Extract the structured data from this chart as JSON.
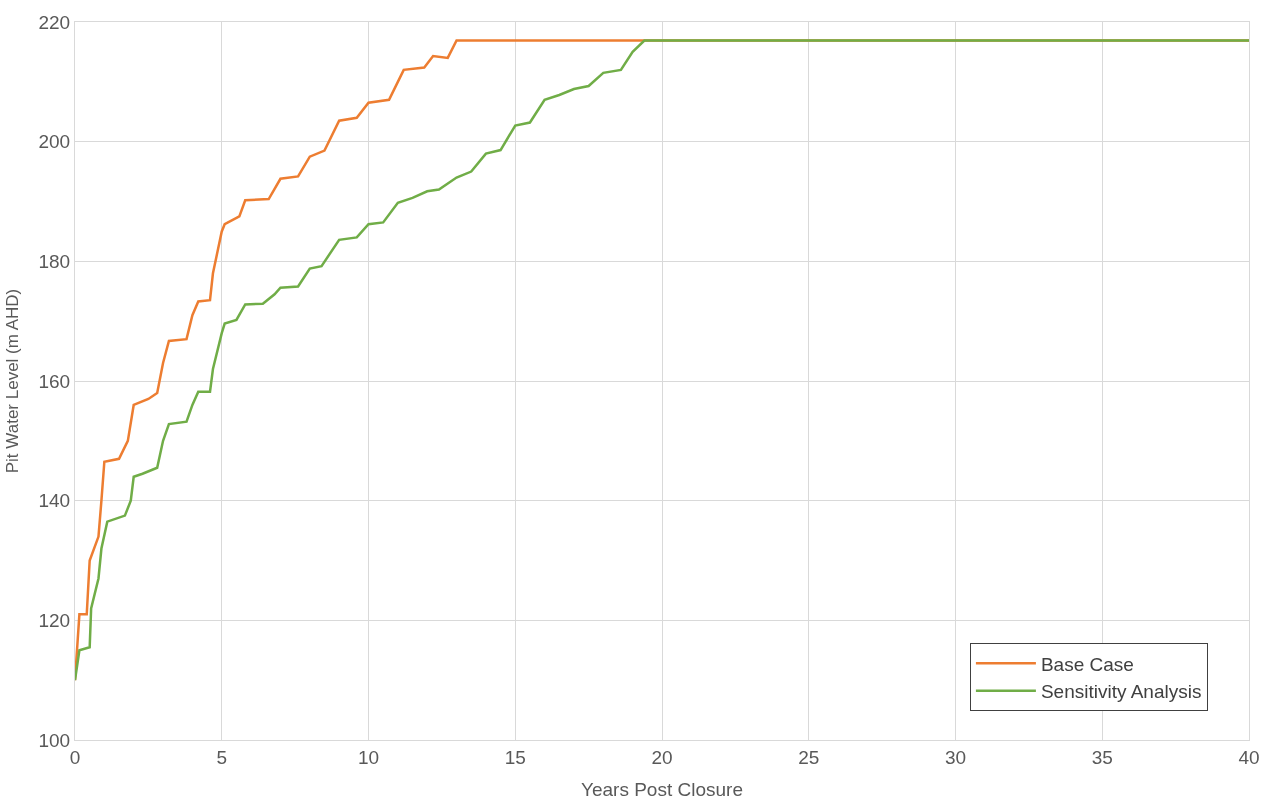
{
  "chart_data": {
    "type": "line",
    "xlabel": "Years Post Closure",
    "ylabel": "Pit Water Level (m AHD)",
    "xlim": [
      0,
      40
    ],
    "xticks": [
      0,
      5,
      10,
      15,
      20,
      25,
      30,
      35,
      40
    ],
    "ylim": [
      100,
      220
    ],
    "yticks": [
      100,
      120,
      140,
      160,
      180,
      200,
      220
    ],
    "grid": true,
    "legend": "bottom right",
    "marker": "none",
    "line_style": "solid",
    "series": [
      {
        "name": "Base Case",
        "color": "#ed7d31",
        "x": [
          0,
          0.15,
          0.4,
          0.5,
          0.8,
          0.9,
          1.0,
          1.5,
          1.8,
          2.0,
          2.5,
          2.8,
          3.0,
          3.2,
          3.8,
          4.0,
          4.2,
          4.6,
          4.7,
          5.0,
          5.1,
          5.6,
          5.8,
          6.6,
          7.0,
          7.6,
          8.0,
          8.5,
          9.0,
          9.6,
          10.0,
          10.7,
          11.0,
          11.2,
          11.9,
          12.2,
          12.7,
          13.0,
          20,
          30,
          40
        ],
        "values": [
          110,
          121,
          121,
          130,
          134,
          140,
          146.5,
          147,
          150,
          156,
          157,
          158,
          163,
          166.7,
          167,
          171,
          173.3,
          173.5,
          178,
          185,
          186.2,
          187.5,
          190.2,
          190.4,
          193.8,
          194.2,
          197.5,
          198.5,
          203.5,
          204,
          206.5,
          207,
          210,
          212,
          212.4,
          214.3,
          214,
          216.9,
          216.9,
          216.9,
          216.9
        ]
      },
      {
        "name": "Sensitivity Analysis",
        "color": "#70ad47",
        "x": [
          0,
          0.15,
          0.5,
          0.55,
          0.8,
          0.9,
          1.1,
          1.7,
          1.9,
          2.0,
          2.3,
          2.8,
          3.0,
          3.2,
          3.8,
          4.0,
          4.2,
          4.6,
          4.7,
          5.0,
          5.1,
          5.5,
          5.8,
          6.4,
          6.8,
          7.0,
          7.6,
          8.0,
          8.4,
          9.0,
          9.6,
          10.0,
          10.5,
          11.0,
          11.5,
          12.0,
          12.4,
          13.0,
          13.5,
          14.0,
          14.5,
          15.0,
          15.5,
          16.0,
          16.5,
          17.0,
          17.5,
          18.0,
          18.6,
          19.0,
          19.4,
          30,
          40
        ],
        "values": [
          110,
          115,
          115.5,
          122,
          127,
          132,
          136.5,
          137.5,
          140,
          144,
          144.5,
          145.5,
          150,
          152.8,
          153.2,
          156,
          158.2,
          158.2,
          162,
          168,
          169.6,
          170.2,
          172.8,
          172.9,
          174.5,
          175.6,
          175.8,
          178.8,
          179.2,
          183.6,
          184,
          186.2,
          186.5,
          189.8,
          190.6,
          191.7,
          192,
          194,
          195,
          198,
          198.6,
          202.7,
          203.2,
          207,
          207.8,
          208.8,
          209.3,
          211.5,
          212,
          215,
          216.9,
          216.9,
          216.9
        ]
      }
    ]
  }
}
